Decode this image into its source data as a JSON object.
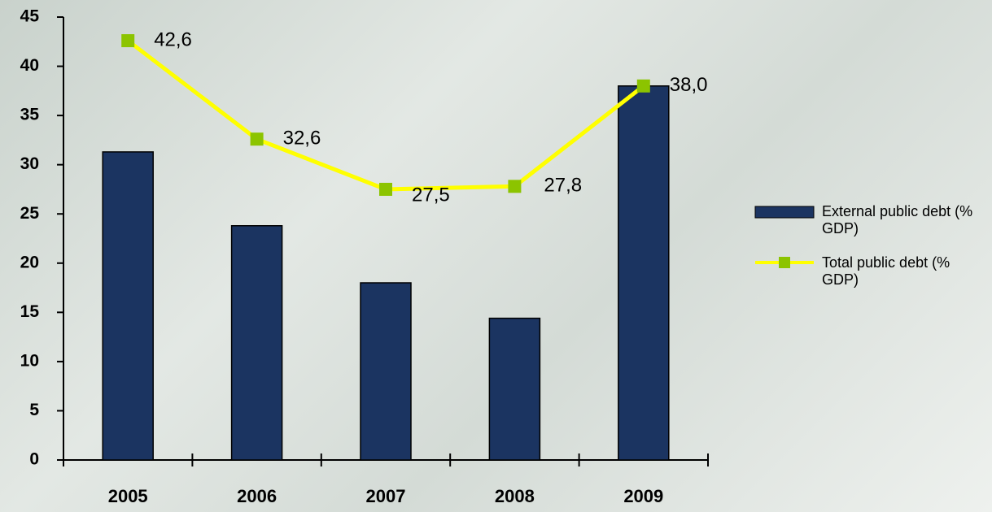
{
  "chart_data": {
    "type": "bar_line",
    "categories": [
      "2005",
      "2006",
      "2007",
      "2008",
      "2009"
    ],
    "series": [
      {
        "name": "External public debt (% GDP)",
        "type": "bar",
        "color": "#1b3461",
        "values": [
          31.3,
          23.8,
          18.0,
          14.4,
          38.0
        ]
      },
      {
        "name": "Total public debt (% GDP)",
        "type": "line",
        "color": "#ffff00",
        "marker_color": "#8cc400",
        "values": [
          42.6,
          32.6,
          27.5,
          27.8,
          38.0
        ],
        "value_labels": [
          "42,6",
          "32,6",
          "27,5",
          "27,8",
          "38,0"
        ]
      }
    ],
    "ylim": [
      0,
      45
    ],
    "yticks": [
      0,
      5,
      10,
      15,
      20,
      25,
      30,
      35,
      40,
      45
    ],
    "grid": false
  }
}
